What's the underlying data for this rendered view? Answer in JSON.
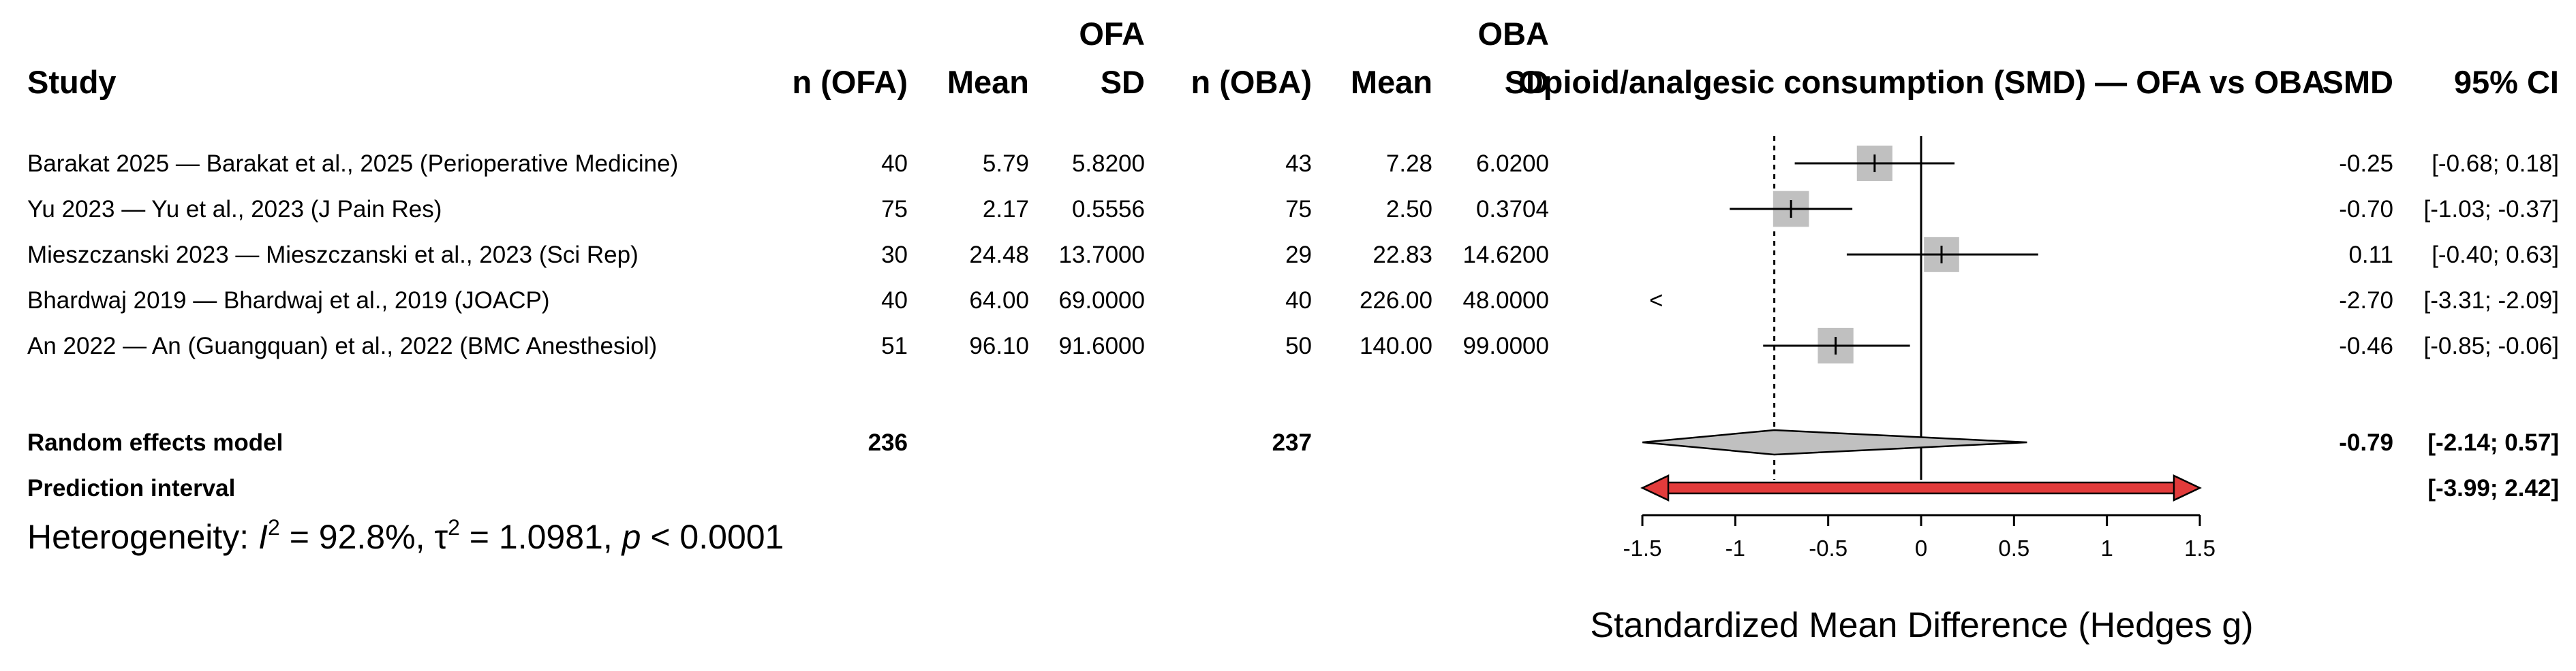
{
  "chart_data": {
    "type": "forest",
    "title": "Opioid/analgesic consumption (SMD) — OFA vs OBA",
    "xlabel": "Standardized Mean Difference (Hedges g)",
    "xlim": [
      -1.5,
      1.5
    ],
    "xticks": [
      "-1.5",
      "-1",
      "-0.5",
      "0",
      "0.5",
      "1",
      "1.5"
    ],
    "grid": false,
    "columns": {
      "study": "Study",
      "n_ofa": "n (OFA)",
      "mean_ofa": "Mean",
      "sd_ofa_1": "OFA",
      "sd_ofa_2": "SD",
      "n_oba": "n (OBA)",
      "mean_oba": "Mean",
      "sd_oba_1": "OBA",
      "sd_oba_2": "SD",
      "smd": "SMD",
      "ci": "95% CI"
    },
    "studies": [
      {
        "study": "Barakat 2025 — Barakat et al., 2025 (Perioperative Medicine)",
        "n_ofa": "40",
        "mean_ofa": "5.79",
        "sd_ofa": "5.8200",
        "n_oba": "43",
        "mean_oba": "7.28",
        "sd_oba": "6.0200",
        "smd_text": "-0.25",
        "ci_text": "[-0.68; 0.18]",
        "smd": -0.25,
        "lower": -0.68,
        "upper": 0.18,
        "weight": 20.2
      },
      {
        "study": "Yu 2023 — Yu et al., 2023 (J Pain Res)",
        "n_ofa": "75",
        "mean_ofa": "2.17",
        "sd_ofa": "0.5556",
        "n_oba": "75",
        "mean_oba": "2.50",
        "sd_oba": "0.3704",
        "smd_text": "-0.70",
        "ci_text": "[-1.03; -0.37]",
        "smd": -0.7,
        "lower": -1.03,
        "upper": -0.37,
        "weight": 20.6
      },
      {
        "study": "Mieszczanski 2023 — Mieszczanski et al., 2023 (Sci Rep)",
        "n_ofa": "30",
        "mean_ofa": "24.48",
        "sd_ofa": "13.7000",
        "n_oba": "29",
        "mean_oba": "22.83",
        "sd_oba": "14.6200",
        "smd_text": "0.11",
        "ci_text": "[-0.40; 0.63]",
        "smd": 0.11,
        "lower": -0.4,
        "upper": 0.63,
        "weight": 19.8
      },
      {
        "study": "Bhardwaj 2019 — Bhardwaj et al., 2019 (JOACP)",
        "n_ofa": "40",
        "mean_ofa": "64.00",
        "sd_ofa": "69.0000",
        "n_oba": "40",
        "mean_oba": "226.00",
        "sd_oba": "48.0000",
        "smd_text": "-2.70",
        "ci_text": "[-3.31; -2.09]",
        "smd": -2.7,
        "lower": -3.31,
        "upper": -2.09,
        "weight": 19.1
      },
      {
        "study": "An 2022 — An (Guangquan) et al., 2022 (BMC Anesthesiol)",
        "n_ofa": "51",
        "mean_ofa": "96.10",
        "sd_ofa": "91.6000",
        "n_oba": "50",
        "mean_oba": "140.00",
        "sd_oba": "99.0000",
        "smd_text": "-0.46",
        "ci_text": "[-0.85; -0.06]",
        "smd": -0.46,
        "lower": -0.85,
        "upper": -0.06,
        "weight": 20.3
      }
    ],
    "random_effects": {
      "label": "Random effects model",
      "n_ofa": "236",
      "n_oba": "237",
      "smd_text": "-0.79",
      "ci_text": "[-2.14; 0.57]",
      "smd": -0.79,
      "lower": -2.14,
      "upper": 0.57
    },
    "prediction_interval": {
      "label": "Prediction interval",
      "ci_text": "[-3.99; 2.42]",
      "lower": -3.99,
      "upper": 2.42,
      "color": "#e23b3b"
    },
    "heterogeneity": {
      "prefix": "Heterogeneity: ",
      "i2": "92.8%",
      "tau2": "1.0981",
      "p": "< 0.0001"
    },
    "colors": {
      "box": "#c0c0c0",
      "diamond": "#c0c0c0",
      "prediction": "#e23b3b"
    }
  }
}
